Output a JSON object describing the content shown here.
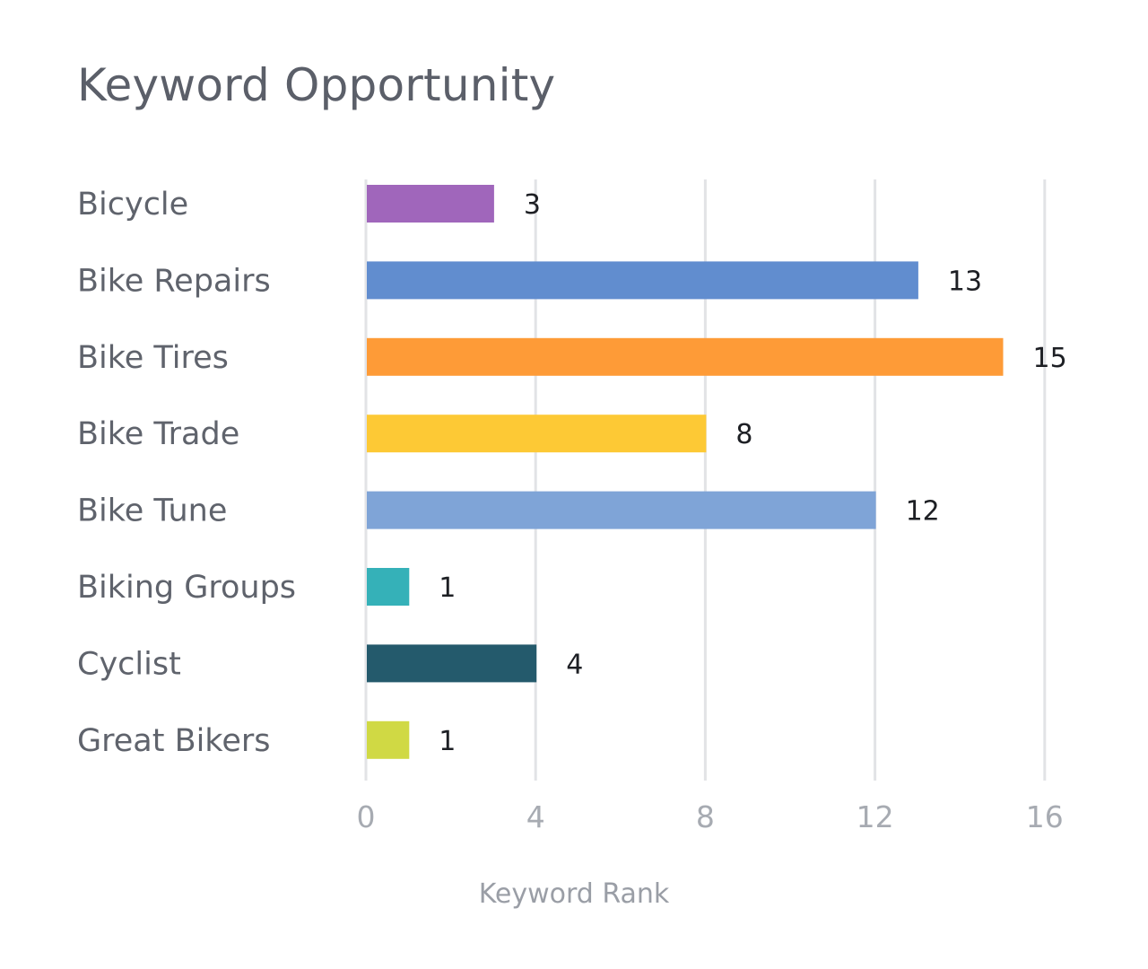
{
  "chart_data": {
    "type": "bar",
    "orientation": "horizontal",
    "title": "Keyword Opportunity",
    "xlabel": "Keyword Rank",
    "ylabel": "",
    "categories": [
      "Bicycle",
      "Bike Repairs",
      "Bike Tires",
      "Bike Trade",
      "Bike Tune",
      "Biking Groups",
      "Cyclist",
      "Great Bikers"
    ],
    "values": [
      3,
      13,
      15,
      8,
      12,
      1,
      4,
      1
    ],
    "bar_colors": [
      "#a066bb",
      "#618dcf",
      "#fe9b37",
      "#fdc935",
      "#7fa4d7",
      "#35b1b8",
      "#245a6c",
      "#d0d944"
    ],
    "xlim": [
      0,
      16
    ],
    "ticks": [
      "0",
      "4",
      "8",
      "12",
      "16"
    ],
    "grid": true,
    "legend": "none"
  }
}
